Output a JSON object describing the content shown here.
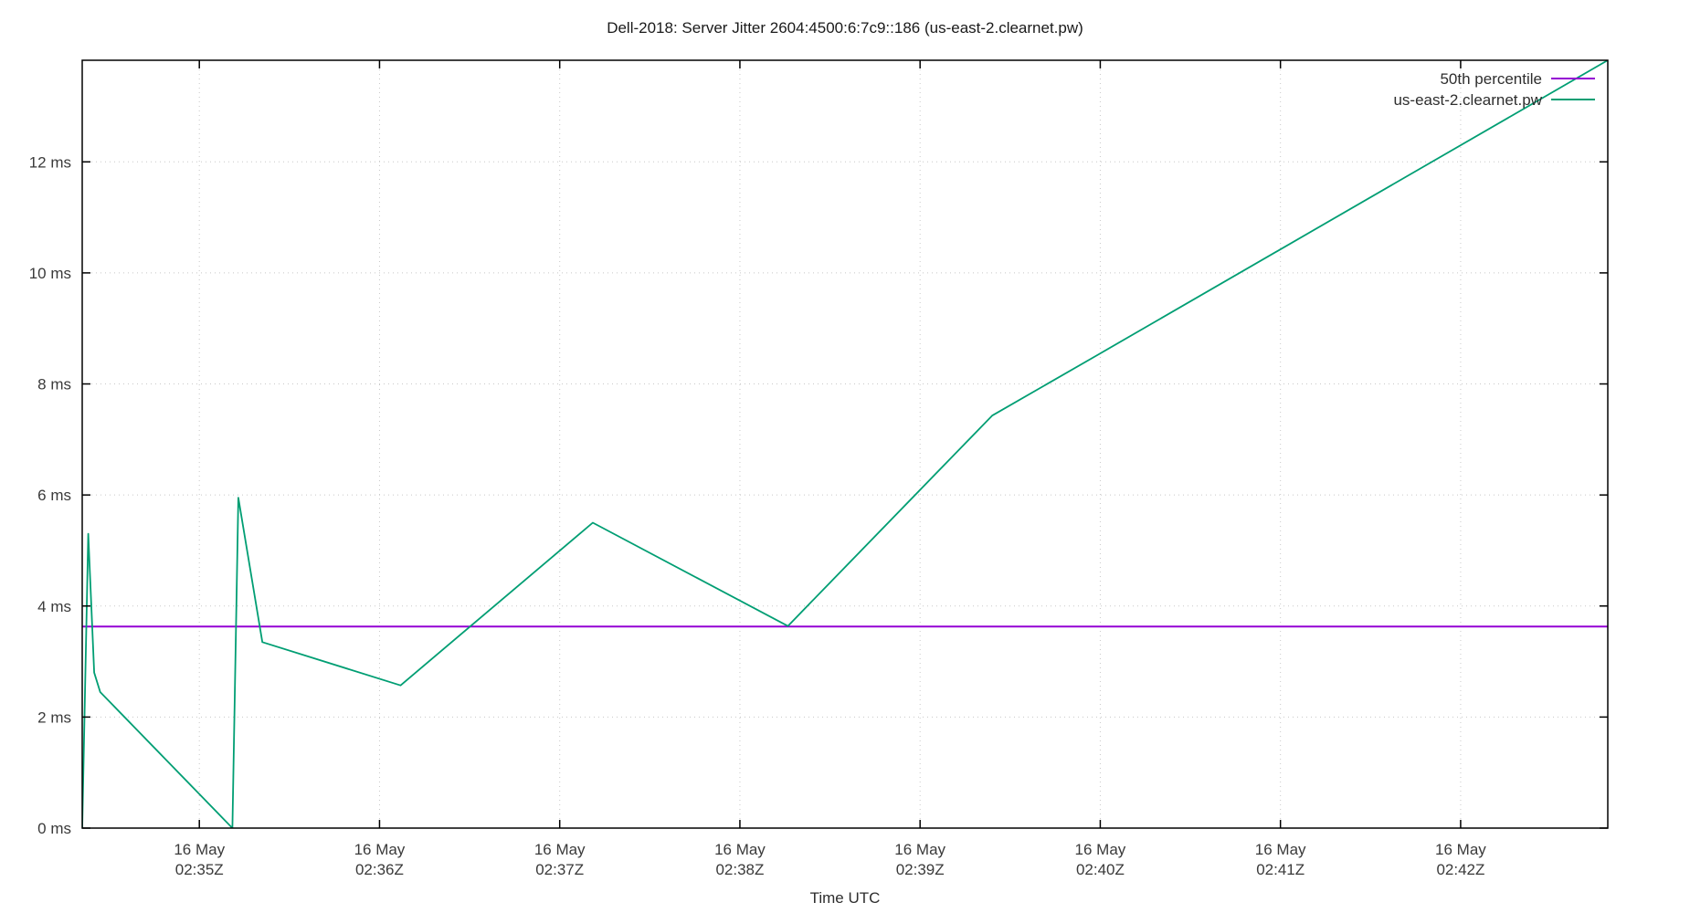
{
  "title": "Dell-2018: Server Jitter 2604:4500:6:7c9::186 (us-east-2.clearnet.pw)",
  "colors": {
    "background": "#ffffff",
    "border": "#000000",
    "grid": "#c8c8c8",
    "tick_text": "#3a3a3a",
    "percentile_line": "#9400d3",
    "data_line": "#009e73"
  },
  "chart_data": {
    "type": "line",
    "title": "Dell-2018: Server Jitter 2604:4500:6:7c9::186 (us-east-2.clearnet.pw)",
    "xlabel": "Time UTC",
    "ylabel": "",
    "grid": true,
    "legend_position": "top-right-inside",
    "ylim_ms": [
      0,
      13.83
    ],
    "y_tick_step_ms": 2,
    "y_ticks": [
      "0 ms",
      "2 ms",
      "4 ms",
      "6 ms",
      "8 ms",
      "10 ms",
      "12 ms"
    ],
    "xlim_utc": [
      "02:34:21",
      "02:42:49"
    ],
    "x_ticks": [
      {
        "date": "16 May",
        "time": "02:35Z",
        "t": "02:35:00"
      },
      {
        "date": "16 May",
        "time": "02:36Z",
        "t": "02:36:00"
      },
      {
        "date": "16 May",
        "time": "02:37Z",
        "t": "02:37:00"
      },
      {
        "date": "16 May",
        "time": "02:38Z",
        "t": "02:38:00"
      },
      {
        "date": "16 May",
        "time": "02:39Z",
        "t": "02:39:00"
      },
      {
        "date": "16 May",
        "time": "02:40Z",
        "t": "02:40:00"
      },
      {
        "date": "16 May",
        "time": "02:41Z",
        "t": "02:41:00"
      },
      {
        "date": "16 May",
        "time": "02:42Z",
        "t": "02:42:00"
      }
    ],
    "series": [
      {
        "name": "50th percentile",
        "color": "#9400d3",
        "style": "hline",
        "value_ms": 3.63
      },
      {
        "name": "us-east-2.clearnet.pw",
        "color": "#009e73",
        "style": "line",
        "points": [
          [
            "02:34:21",
            0.0
          ],
          [
            "02:34:23",
            5.3
          ],
          [
            "02:34:25",
            2.8
          ],
          [
            "02:34:27",
            2.45
          ],
          [
            "02:35:11",
            0.0
          ],
          [
            "02:35:13",
            5.95
          ],
          [
            "02:35:21",
            3.35
          ],
          [
            "02:36:07",
            2.57
          ],
          [
            "02:37:11",
            5.5
          ],
          [
            "02:38:16",
            3.64
          ],
          [
            "02:39:24",
            7.43
          ],
          [
            "02:40:00",
            8.55
          ],
          [
            "02:42:49",
            13.83
          ]
        ]
      }
    ]
  }
}
